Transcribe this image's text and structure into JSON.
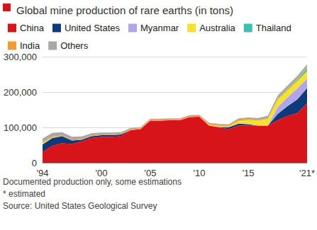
{
  "chart_data": {
    "type": "area",
    "title": "Global mine production of rare earths (in tons)",
    "annotations": [
      "Documented production only, some estimations",
      "* estimated",
      "Source: United States Geological Survey"
    ],
    "categories": [
      "'94",
      null,
      null,
      null,
      null,
      null,
      "'00",
      null,
      null,
      null,
      null,
      "'05",
      null,
      null,
      null,
      null,
      "'10",
      null,
      null,
      null,
      null,
      "'15",
      null,
      null,
      null,
      null,
      null,
      "'21*"
    ],
    "series": [
      {
        "name": "China",
        "color": "#d7141a",
        "values": [
          30000,
          48000,
          55000,
          53000,
          60000,
          70000,
          73000,
          73000,
          75000,
          92000,
          95000,
          119000,
          119000,
          120000,
          120000,
          129000,
          130000,
          105000,
          100000,
          95000,
          105000,
          105000,
          105000,
          105000,
          120000,
          132000,
          140000,
          168000
        ]
      },
      {
        "name": "United States",
        "color": "#0d3b7a",
        "values": [
          22000,
          22000,
          20000,
          10000,
          5000,
          5000,
          5000,
          5000,
          5000,
          0,
          0,
          0,
          0,
          0,
          0,
          0,
          0,
          0,
          800,
          5500,
          5400,
          4100,
          0,
          0,
          18000,
          28000,
          39000,
          43000
        ]
      },
      {
        "name": "Myanmar",
        "color": "#b3a6e6",
        "values": [
          0,
          0,
          0,
          0,
          0,
          0,
          0,
          0,
          0,
          0,
          0,
          0,
          0,
          0,
          0,
          0,
          0,
          0,
          0,
          0,
          0,
          0,
          0,
          0,
          19000,
          25000,
          31000,
          26000
        ]
      },
      {
        "name": "Australia",
        "color": "#f5e12e",
        "values": [
          4000,
          2000,
          0,
          0,
          0,
          0,
          0,
          0,
          0,
          0,
          0,
          0,
          0,
          0,
          0,
          0,
          0,
          2200,
          3200,
          2000,
          8000,
          12000,
          14000,
          19000,
          21000,
          20000,
          21000,
          22000
        ]
      },
      {
        "name": "Thailand",
        "color": "#3fbfb5",
        "values": [
          0,
          0,
          0,
          0,
          0,
          0,
          0,
          0,
          0,
          0,
          0,
          0,
          0,
          0,
          0,
          0,
          0,
          0,
          0,
          0,
          0,
          0,
          0,
          0,
          1000,
          1900,
          3600,
          8000
        ]
      },
      {
        "name": "India",
        "color": "#f39c34",
        "values": [
          2700,
          2700,
          2700,
          2700,
          2700,
          2700,
          2700,
          2700,
          2700,
          2700,
          2700,
          2700,
          2700,
          2700,
          2700,
          2700,
          2700,
          2800,
          2900,
          2900,
          2900,
          2900,
          1500,
          1800,
          2900,
          2900,
          2900,
          2900
        ]
      },
      {
        "name": "Others",
        "color": "#a8a8a8",
        "values": [
          10000,
          10000,
          9000,
          8000,
          7000,
          6000,
          5000,
          5000,
          4000,
          4000,
          3000,
          3000,
          3000,
          3000,
          3000,
          3000,
          3000,
          3000,
          3000,
          3000,
          4000,
          4000,
          6000,
          7000,
          8000,
          8000,
          8000,
          8000
        ]
      }
    ],
    "ylim": [
      0,
      300000
    ],
    "yticks": [
      0,
      {
        "value": 100000,
        "label": "100,000"
      },
      {
        "value": 200000,
        "label": "200,000"
      },
      {
        "value": 300000,
        "label": "300,000"
      }
    ],
    "stacked": true,
    "grid": true,
    "legend": "top"
  }
}
